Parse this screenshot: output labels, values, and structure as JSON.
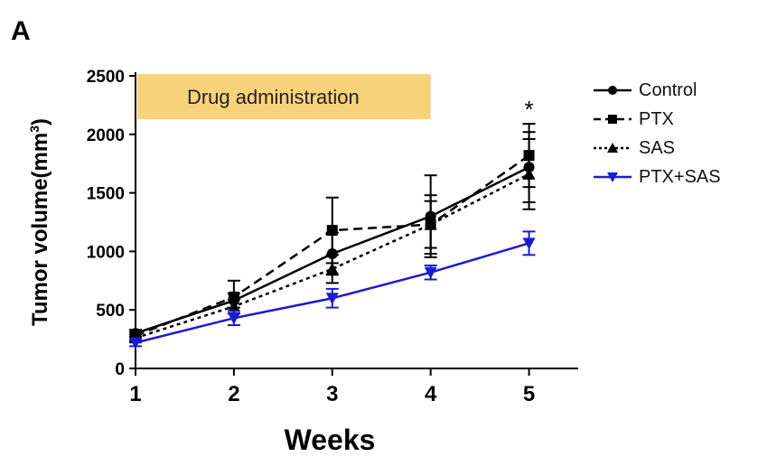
{
  "panel_label": "A",
  "annotation": "Drug administration",
  "significance": "*",
  "colors": {
    "annotation_bg": "#f8d27a",
    "black": "#000000",
    "blue": "#1a1ad6"
  },
  "chart_data": {
    "type": "line",
    "title": "",
    "xlabel": "Weeks",
    "ylabel": "Tumor volume(mm",
    "ylabel_unit_sup": "3",
    "ylabel_close": ")",
    "x": [
      1,
      2,
      3,
      4,
      5
    ],
    "xlim": [
      1,
      5.5
    ],
    "ylim": [
      0,
      2500
    ],
    "yticks": [
      0,
      500,
      1000,
      1500,
      2000,
      2500
    ],
    "xticks": [
      1,
      2,
      3,
      4,
      5
    ],
    "annotation_span_weeks": [
      1,
      4
    ],
    "significance_at_week": 5,
    "legend_position": "right",
    "series": [
      {
        "name": "Control",
        "marker": "circle",
        "line": "solid",
        "color": "#000000",
        "values": [
          300,
          580,
          980,
          1300,
          1720
        ],
        "errors": [
          30,
          60,
          180,
          350,
          300
        ]
      },
      {
        "name": "PTX",
        "marker": "square",
        "line": "dashed",
        "color": "#000000",
        "values": [
          280,
          610,
          1180,
          1230,
          1820
        ],
        "errors": [
          30,
          140,
          280,
          250,
          270
        ]
      },
      {
        "name": "SAS",
        "marker": "triangle-up",
        "line": "dotted",
        "color": "#000000",
        "values": [
          260,
          530,
          850,
          1230,
          1660
        ],
        "errors": [
          30,
          60,
          120,
          200,
          300
        ]
      },
      {
        "name": "PTX+SAS",
        "marker": "triangle-down",
        "line": "solid",
        "color": "#1a1ad6",
        "values": [
          220,
          430,
          600,
          820,
          1070
        ],
        "errors": [
          30,
          60,
          80,
          60,
          100
        ]
      }
    ]
  }
}
